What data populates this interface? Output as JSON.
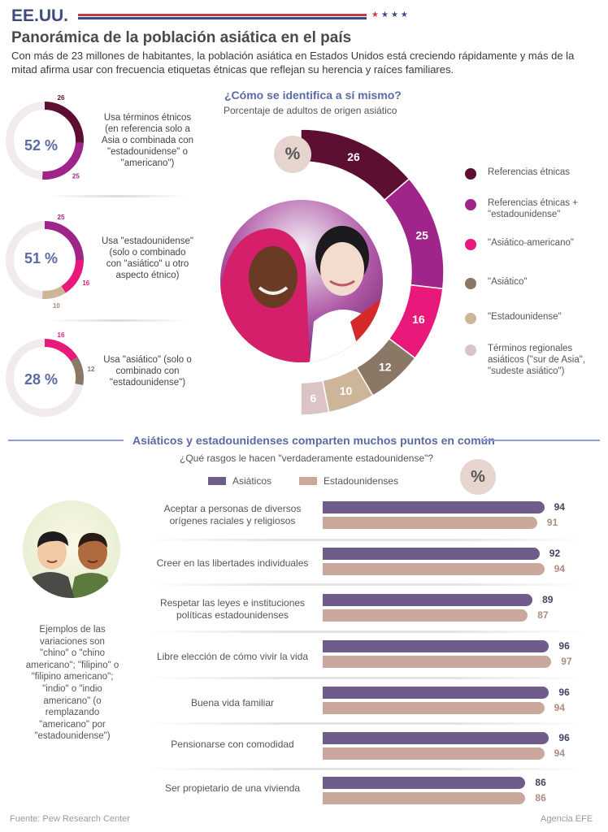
{
  "header": {
    "country": "EE.UU.",
    "title": "Panorámica de la población asiática en el país",
    "intro": "Con más de 23 millones de habitantes, la población asiática en Estados Unidos está creciendo rápidamente y más de la mitad afirma usar con frecuencia etiquetas étnicas que reflejan su herencia y raíces familiares."
  },
  "colors": {
    "brand_blue": "#3e4a80",
    "brand_red": "#c23a48",
    "accent": "#5b6aa6",
    "etnicas": "#5c0f33",
    "etnicas_estadounidense": "#a0258b",
    "asiatico_americano": "#e8197a",
    "asiatico": "#8a7766",
    "estadounidense": "#cdb59a",
    "regionales": "#dcc3c6",
    "asiaticos_bar": "#6f5c8a",
    "estadounidenses_bar": "#c9a79c"
  },
  "small_donuts": [
    {
      "pct": "52 %",
      "desc": "Usa términos étnicos (en referencia solo a Asia o combinada con \"estadounidense\" o \"americano\")",
      "segments": [
        {
          "label": "26",
          "value": 26,
          "color": "#5c0f33"
        },
        {
          "label": "25",
          "value": 25,
          "color": "#a0258b"
        }
      ]
    },
    {
      "pct": "51 %",
      "desc": "Usa \"estadounidense\" (solo o combinado con \"asiático\" u otro aspecto étnico)",
      "segments": [
        {
          "label": "25",
          "value": 25,
          "color": "#a0258b"
        },
        {
          "label": "16",
          "value": 16,
          "color": "#e8197a"
        },
        {
          "label": "10",
          "value": 10,
          "color": "#cdb59a"
        }
      ]
    },
    {
      "pct": "28 %",
      "desc": "Usa \"asiático\" (solo o combinado con \"estadounidense\")",
      "segments": [
        {
          "label": "16",
          "value": 16,
          "color": "#e8197a"
        },
        {
          "label": "12",
          "value": 12,
          "color": "#8a7766"
        }
      ]
    }
  ],
  "donut_section": {
    "question": "¿Cómo se identifica a sí mismo?",
    "subtitle": "Porcentaje de adultos de origen asiático",
    "pct_symbol": "%"
  },
  "chart_data": [
    {
      "type": "pie",
      "title": "¿Cómo se identifica a sí mismo?",
      "subtitle": "Porcentaje de adultos de origen asiático",
      "categories": [
        "Referencias étnicas",
        "Referencias étnicas + \"estadounidense\"",
        "\"Asiático-americano\"",
        "\"Asiático\"",
        "\"Estadounidense\"",
        "Términos regionales asiáticos (\"sur de Asia\", \"sudeste asiático\")"
      ],
      "values": [
        26,
        25,
        16,
        12,
        10,
        6
      ],
      "colors": [
        "#5c0f33",
        "#a0258b",
        "#e8197a",
        "#8a7766",
        "#cdb59a",
        "#dcc3c6"
      ],
      "legend": "right"
    },
    {
      "type": "bar",
      "orientation": "horizontal",
      "title": "Asiáticos y estadounidenses comparten muchos puntos en común",
      "subtitle": "¿Qué rasgos le hacen \"verdaderamente estadounidense\"?",
      "categories": [
        "Aceptar a personas de diversos orígenes raciales y religiosos",
        "Creer en las libertades individuales",
        "Respetar las leyes e instituciones políticas estadounidenses",
        "Libre elección de cómo vivir la vida",
        "Buena vida familiar",
        "Pensionarse con comodidad",
        "Ser propietario de una vivienda"
      ],
      "series": [
        {
          "name": "Asiáticos",
          "values": [
            94,
            92,
            89,
            96,
            96,
            96,
            86
          ],
          "color": "#6f5c8a"
        },
        {
          "name": "Estadounidenses",
          "values": [
            91,
            94,
            87,
            97,
            94,
            94,
            86
          ],
          "color": "#c9a79c"
        }
      ],
      "xlim": [
        0,
        100
      ],
      "legend": "top"
    }
  ],
  "bars_section": {
    "title": "Asiáticos y estadounidenses comparten muchos puntos en común",
    "subtitle": "¿Qué rasgos le hacen \"verdaderamente estadounidense\"?",
    "legend_asiaticos": "Asiáticos",
    "legend_estadounidenses": "Estadounidenses",
    "pct_symbol": "%"
  },
  "side_note": "Ejemplos de las variaciones son \"chino\" o \"chino americano\"; \"filipino\" o \"filipino americano\"; \"indio\" o \"indio americano\" (o remplazando \"americano\" por \"estadounidense\")",
  "footer": {
    "source": "Fuente: Pew Research Center",
    "agency": "Agencia EFE"
  }
}
